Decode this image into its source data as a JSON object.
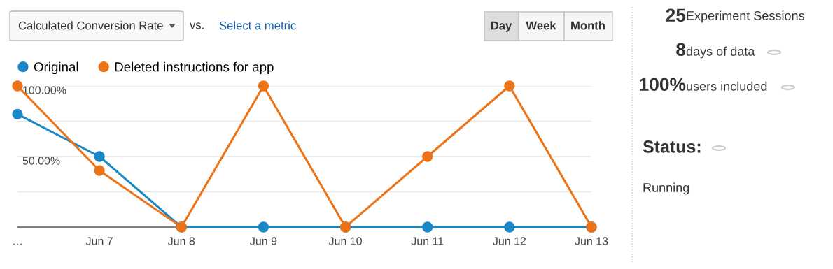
{
  "chart_data": {
    "type": "line",
    "categories": [
      "…",
      "Jun 7",
      "Jun 8",
      "Jun 9",
      "Jun 10",
      "Jun 11",
      "Jun 12",
      "Jun 13"
    ],
    "series": [
      {
        "name": "Original",
        "color": "#1a87c6",
        "values": [
          80,
          50,
          0,
          0,
          0,
          0,
          0,
          0
        ]
      },
      {
        "name": "Deleted instructions for app",
        "color": "#ec7318",
        "values": [
          100,
          40,
          0,
          100,
          0,
          50,
          100,
          0
        ]
      }
    ],
    "ylim": [
      0,
      100
    ],
    "yticks": [
      {
        "value": 25,
        "label": null
      },
      {
        "value": 50,
        "label": "50.00%"
      },
      {
        "value": 75,
        "label": null
      },
      {
        "value": 100,
        "label": "100.00%"
      }
    ],
    "grid": "y",
    "legend": "top left",
    "marker": "circle",
    "line_style": "solid",
    "annotations": [
      "Calculated Conversion Rate",
      "vs.",
      "Select a metric",
      "Day",
      "Week",
      "Month",
      "25",
      "Experiment Sessions",
      "8",
      "days of data",
      "100%",
      "users included",
      "Status:",
      "Running"
    ]
  }
}
